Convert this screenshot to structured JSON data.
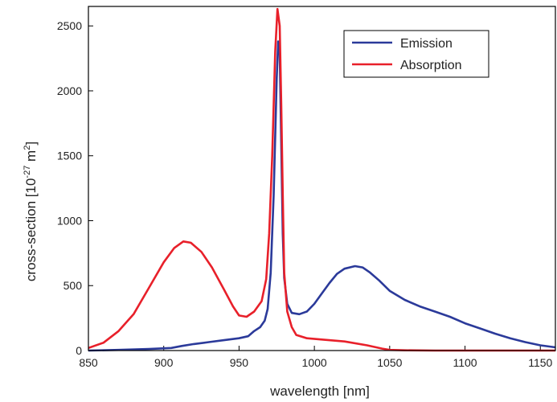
{
  "chart_data": {
    "type": "line",
    "xlabel": "wavelength [nm]",
    "ylabel_parts": {
      "base": "cross-section [10",
      "exp1": "-27",
      "mid": " m",
      "exp2": "2",
      "end": "]"
    },
    "xlim": [
      850,
      1160
    ],
    "ylim": [
      0,
      2650
    ],
    "xticks": [
      850,
      900,
      950,
      1000,
      1050,
      1100,
      1150
    ],
    "yticks": [
      0,
      500,
      1000,
      1500,
      2000,
      2500
    ],
    "grid": false,
    "legend_position": "top-right",
    "series": [
      {
        "name": "Emission",
        "color": "#2b3a9a",
        "points": [
          [
            850,
            0
          ],
          [
            870,
            5
          ],
          [
            890,
            12
          ],
          [
            905,
            20
          ],
          [
            912,
            35
          ],
          [
            920,
            50
          ],
          [
            930,
            65
          ],
          [
            940,
            80
          ],
          [
            950,
            95
          ],
          [
            956,
            110
          ],
          [
            960,
            150
          ],
          [
            964,
            180
          ],
          [
            967,
            230
          ],
          [
            969,
            320
          ],
          [
            971,
            600
          ],
          [
            973,
            1200
          ],
          [
            975,
            2100
          ],
          [
            976,
            2380
          ],
          [
            977,
            2300
          ],
          [
            978,
            1600
          ],
          [
            979,
            900
          ],
          [
            980,
            560
          ],
          [
            982,
            360
          ],
          [
            985,
            290
          ],
          [
            990,
            280
          ],
          [
            995,
            300
          ],
          [
            1000,
            360
          ],
          [
            1005,
            440
          ],
          [
            1010,
            520
          ],
          [
            1015,
            590
          ],
          [
            1020,
            630
          ],
          [
            1027,
            650
          ],
          [
            1032,
            640
          ],
          [
            1037,
            600
          ],
          [
            1043,
            540
          ],
          [
            1050,
            460
          ],
          [
            1060,
            390
          ],
          [
            1070,
            340
          ],
          [
            1080,
            300
          ],
          [
            1090,
            260
          ],
          [
            1100,
            210
          ],
          [
            1110,
            170
          ],
          [
            1120,
            130
          ],
          [
            1130,
            95
          ],
          [
            1140,
            65
          ],
          [
            1150,
            40
          ],
          [
            1160,
            25
          ]
        ]
      },
      {
        "name": "Absorption",
        "color": "#e8202a",
        "points": [
          [
            850,
            20
          ],
          [
            860,
            60
          ],
          [
            870,
            150
          ],
          [
            880,
            280
          ],
          [
            890,
            480
          ],
          [
            900,
            680
          ],
          [
            907,
            790
          ],
          [
            913,
            840
          ],
          [
            918,
            830
          ],
          [
            925,
            760
          ],
          [
            932,
            640
          ],
          [
            940,
            470
          ],
          [
            946,
            340
          ],
          [
            950,
            270
          ],
          [
            955,
            260
          ],
          [
            960,
            300
          ],
          [
            965,
            380
          ],
          [
            968,
            550
          ],
          [
            970,
            900
          ],
          [
            972,
            1500
          ],
          [
            974,
            2300
          ],
          [
            975.5,
            2630
          ],
          [
            977,
            2500
          ],
          [
            978,
            1900
          ],
          [
            979,
            1200
          ],
          [
            980,
            600
          ],
          [
            982,
            300
          ],
          [
            985,
            180
          ],
          [
            988,
            120
          ],
          [
            995,
            95
          ],
          [
            1005,
            85
          ],
          [
            1020,
            70
          ],
          [
            1035,
            40
          ],
          [
            1045,
            15
          ],
          [
            1050,
            5
          ],
          [
            1060,
            2
          ],
          [
            1080,
            0
          ],
          [
            1100,
            0
          ],
          [
            1160,
            0
          ]
        ]
      }
    ]
  }
}
